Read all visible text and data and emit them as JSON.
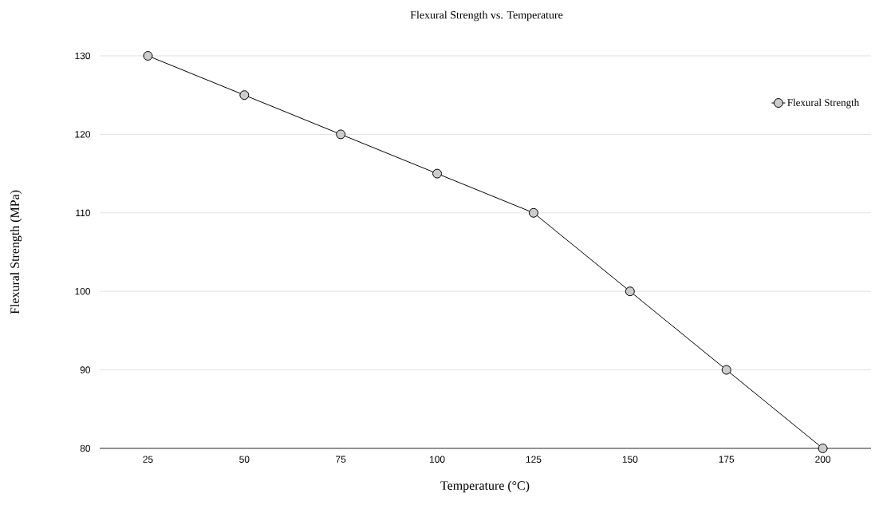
{
  "chart_data": {
    "type": "line",
    "title": "Flexural Strength vs. Temperature",
    "xlabel": "Temperature (°C)",
    "ylabel": "Flexural Strength (MPa)",
    "categories": [
      "25",
      "50",
      "75",
      "100",
      "125",
      "150",
      "175",
      "200"
    ],
    "series": [
      {
        "name": "Flexural Strength",
        "color": "#000000",
        "values": [
          130,
          125,
          120,
          115,
          110,
          100,
          90,
          80
        ]
      }
    ],
    "ylim": [
      80,
      130
    ],
    "yticks": [
      80,
      90,
      100,
      110,
      120,
      130
    ],
    "grid": "y",
    "legend": "top right",
    "marker": "circle",
    "line_style": "solid"
  }
}
